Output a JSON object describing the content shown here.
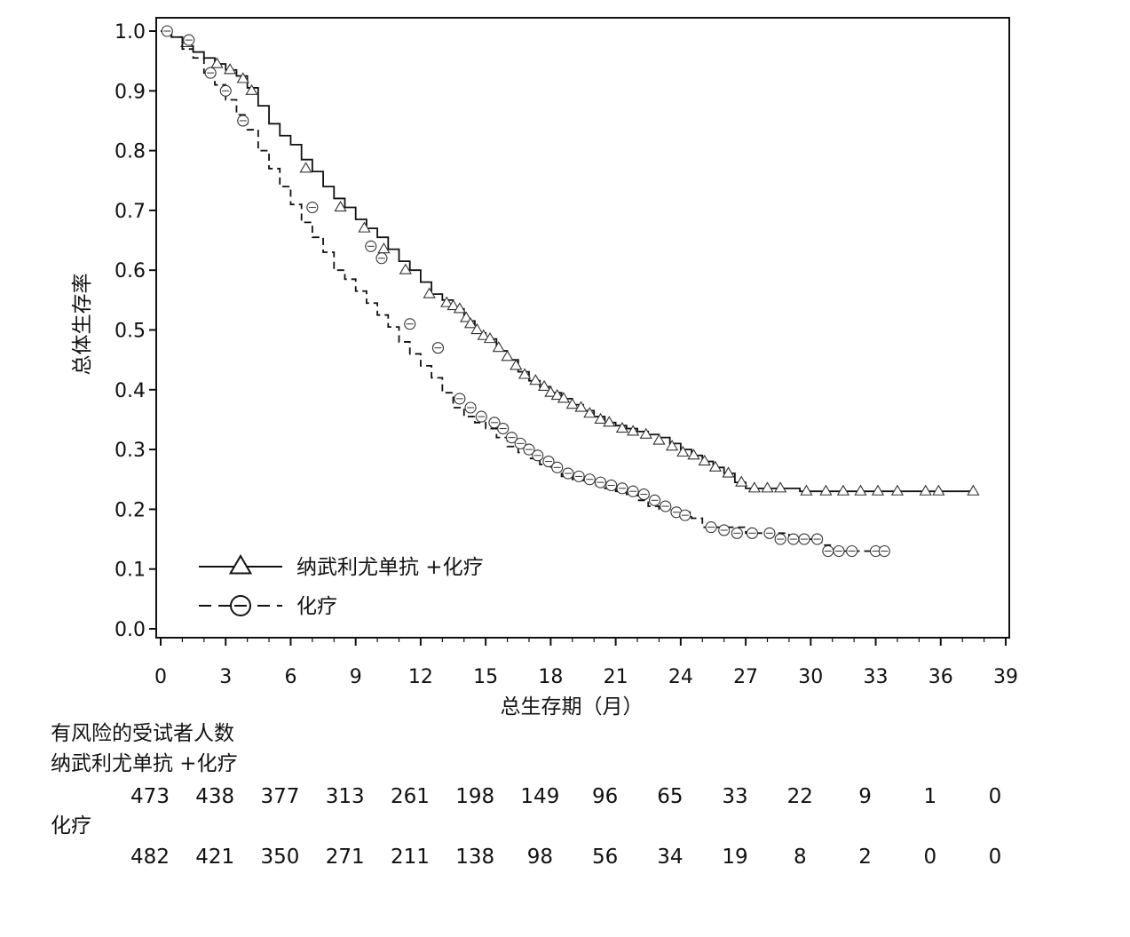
{
  "chart_data": {
    "type": "line",
    "chart_subtype": "kaplan-meier",
    "title": "",
    "xlabel": "总生存期（月）",
    "ylabel": "总体生存率",
    "xlim": [
      0,
      39
    ],
    "ylim": [
      0.0,
      1.0
    ],
    "xticks": [
      "0",
      "3",
      "6",
      "9",
      "12",
      "15",
      "18",
      "21",
      "24",
      "27",
      "30",
      "33",
      "36",
      "39"
    ],
    "yticks": [
      "0.0",
      "0.1",
      "0.2",
      "0.3",
      "0.4",
      "0.5",
      "0.6",
      "0.7",
      "0.8",
      "0.9",
      "1.0"
    ],
    "grid": false,
    "legend_position": "bottom-left",
    "series": [
      {
        "name": "纳武利尤单抗 +化疗",
        "line_style": "solid",
        "marker": "triangle",
        "color": "#111111",
        "x": [
          0,
          0.5,
          1,
          1.5,
          2,
          2.5,
          3,
          3.5,
          4,
          4.5,
          5,
          5.5,
          6,
          6.5,
          7,
          7.5,
          8,
          8.5,
          9,
          9.5,
          10,
          10.5,
          11,
          11.5,
          12,
          12.5,
          13,
          13.5,
          14,
          14.5,
          15,
          15.5,
          16,
          16.5,
          17,
          17.5,
          18,
          18.5,
          19,
          19.5,
          20,
          20.5,
          21,
          21.5,
          22,
          22.5,
          23,
          23.5,
          24,
          24.5,
          25,
          25.5,
          26,
          26.5,
          27,
          28,
          29,
          29.5,
          30,
          31,
          32,
          33,
          34,
          35,
          36,
          37.5
        ],
        "y": [
          1.0,
          0.99,
          0.975,
          0.965,
          0.955,
          0.945,
          0.935,
          0.925,
          0.905,
          0.875,
          0.845,
          0.825,
          0.81,
          0.785,
          0.765,
          0.74,
          0.72,
          0.705,
          0.685,
          0.67,
          0.655,
          0.635,
          0.615,
          0.6,
          0.58,
          0.56,
          0.55,
          0.535,
          0.515,
          0.495,
          0.485,
          0.465,
          0.45,
          0.43,
          0.415,
          0.405,
          0.395,
          0.385,
          0.375,
          0.365,
          0.355,
          0.345,
          0.34,
          0.335,
          0.33,
          0.325,
          0.32,
          0.31,
          0.3,
          0.29,
          0.28,
          0.27,
          0.26,
          0.245,
          0.235,
          0.235,
          0.235,
          0.23,
          0.23,
          0.23,
          0.23,
          0.23,
          0.23,
          0.23,
          0.23,
          0.23
        ],
        "censored_x": [
          1.2,
          2.6,
          3.2,
          3.8,
          4.2,
          6.7,
          8.3,
          9.4,
          10.3,
          11.3,
          12.4,
          13.2,
          13.5,
          13.8,
          14.1,
          14.3,
          14.6,
          14.9,
          15.2,
          15.6,
          16.0,
          16.4,
          16.8,
          17.3,
          17.7,
          18.0,
          18.3,
          18.6,
          19.0,
          19.4,
          19.8,
          20.3,
          20.7,
          21.3,
          21.8,
          22.4,
          23.0,
          23.6,
          24.1,
          24.6,
          25.1,
          25.6,
          26.2,
          26.8,
          27.4,
          28.0,
          28.6,
          29.8,
          30.7,
          31.5,
          32.3,
          33.1,
          34.0,
          35.3,
          35.9,
          37.5
        ],
        "censored_y": [
          0.98,
          0.945,
          0.935,
          0.92,
          0.9,
          0.77,
          0.705,
          0.67,
          0.635,
          0.6,
          0.56,
          0.545,
          0.54,
          0.535,
          0.52,
          0.51,
          0.5,
          0.49,
          0.485,
          0.47,
          0.455,
          0.44,
          0.425,
          0.415,
          0.405,
          0.395,
          0.39,
          0.385,
          0.375,
          0.37,
          0.36,
          0.35,
          0.345,
          0.335,
          0.33,
          0.325,
          0.315,
          0.305,
          0.295,
          0.29,
          0.28,
          0.27,
          0.26,
          0.245,
          0.235,
          0.235,
          0.235,
          0.23,
          0.23,
          0.23,
          0.23,
          0.23,
          0.23,
          0.23,
          0.23,
          0.23
        ]
      },
      {
        "name": "化疗",
        "line_style": "dashed",
        "marker": "circle",
        "color": "#111111",
        "x": [
          0,
          0.5,
          1,
          1.5,
          2,
          2.5,
          3,
          3.5,
          4,
          4.5,
          5,
          5.5,
          6,
          6.5,
          7,
          7.5,
          8,
          8.5,
          9,
          9.5,
          10,
          10.5,
          11,
          11.5,
          12,
          12.5,
          13,
          13.5,
          14,
          14.5,
          15,
          15.5,
          16,
          16.5,
          17,
          17.5,
          18,
          18.5,
          19,
          19.5,
          20,
          20.5,
          21,
          21.5,
          22,
          22.5,
          23,
          23.5,
          24,
          24.5,
          25,
          26,
          27,
          28,
          29,
          30,
          30.5,
          31,
          32,
          33,
          33.5
        ],
        "y": [
          1.0,
          0.99,
          0.97,
          0.955,
          0.93,
          0.91,
          0.885,
          0.86,
          0.835,
          0.8,
          0.77,
          0.74,
          0.71,
          0.68,
          0.655,
          0.63,
          0.6,
          0.585,
          0.565,
          0.545,
          0.525,
          0.505,
          0.48,
          0.46,
          0.44,
          0.42,
          0.395,
          0.37,
          0.355,
          0.345,
          0.335,
          0.32,
          0.305,
          0.295,
          0.285,
          0.275,
          0.265,
          0.255,
          0.25,
          0.245,
          0.24,
          0.235,
          0.23,
          0.225,
          0.215,
          0.205,
          0.2,
          0.195,
          0.195,
          0.185,
          0.17,
          0.17,
          0.16,
          0.16,
          0.15,
          0.15,
          0.14,
          0.13,
          0.13,
          0.13,
          0.13
        ],
        "censored_x": [
          0.3,
          1.3,
          2.3,
          3.0,
          3.8,
          7.0,
          9.7,
          10.2,
          11.5,
          12.8,
          13.8,
          14.3,
          14.8,
          15.4,
          15.8,
          16.2,
          16.6,
          17.0,
          17.4,
          17.9,
          18.3,
          18.8,
          19.3,
          19.8,
          20.3,
          20.8,
          21.3,
          21.8,
          22.3,
          22.8,
          23.3,
          23.8,
          24.2,
          25.4,
          26.0,
          26.6,
          27.3,
          28.1,
          28.6,
          29.2,
          29.7,
          30.3,
          30.8,
          31.3,
          31.9,
          33.0,
          33.4
        ],
        "censored_y": [
          1.0,
          0.985,
          0.93,
          0.9,
          0.85,
          0.705,
          0.64,
          0.62,
          0.51,
          0.47,
          0.385,
          0.37,
          0.355,
          0.345,
          0.335,
          0.32,
          0.31,
          0.3,
          0.29,
          0.28,
          0.27,
          0.26,
          0.255,
          0.25,
          0.245,
          0.24,
          0.235,
          0.23,
          0.225,
          0.215,
          0.205,
          0.195,
          0.19,
          0.17,
          0.165,
          0.16,
          0.16,
          0.16,
          0.15,
          0.15,
          0.15,
          0.15,
          0.13,
          0.13,
          0.13,
          0.13,
          0.13
        ]
      }
    ]
  },
  "risk_table": {
    "title": "有风险的受试者人数",
    "times": [
      0,
      3,
      6,
      9,
      12,
      15,
      18,
      21,
      24,
      27,
      30,
      33,
      36,
      39
    ],
    "rows": [
      {
        "label": "纳武利尤单抗 +化疗",
        "counts": [
          "473",
          "438",
          "377",
          "313",
          "261",
          "198",
          "149",
          "96",
          "65",
          "33",
          "22",
          "9",
          "1",
          "0"
        ]
      },
      {
        "label": "化疗",
        "counts": [
          "482",
          "421",
          "350",
          "271",
          "211",
          "138",
          "98",
          "56",
          "34",
          "19",
          "8",
          "2",
          "0",
          "0"
        ]
      }
    ]
  }
}
